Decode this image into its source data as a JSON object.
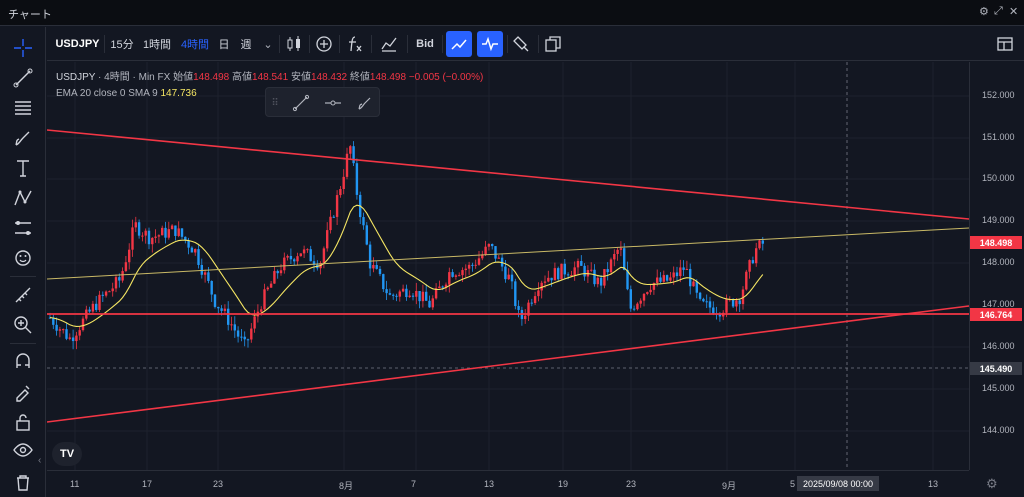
{
  "window": {
    "title": "チャート",
    "controls": [
      "⚙",
      "⤢",
      "⧉",
      "✕"
    ]
  },
  "toolbar": {
    "symbol": "USDJPY",
    "intervals": [
      "15分",
      "1時間",
      "4時間",
      "日",
      "週"
    ],
    "active_interval": "4時間",
    "bid_label": "Bid"
  },
  "legend": {
    "symbol": "USDJPY",
    "interval": "4時間",
    "exchange": "Min FX",
    "open_label": "始値",
    "open": "148.498",
    "high_label": "高値",
    "high": "148.541",
    "low_label": "安値",
    "low": "148.432",
    "close_label": "終値",
    "close": "148.498",
    "change": "−0.005 (−0.00%)",
    "indicator": "EMA 20 close 0 SMA 9",
    "indicator_value": "147.736"
  },
  "price_axis": {
    "ticks": [
      "152.000",
      "151.000",
      "150.000",
      "149.000",
      "148.000",
      "147.000",
      "146.000",
      "145.000",
      "144.000"
    ],
    "badges": [
      {
        "text": "148.498",
        "color": "#f23645"
      },
      {
        "text": "146.764",
        "color": "#f23645"
      },
      {
        "text": "145.490",
        "color": "#363a45"
      }
    ]
  },
  "time_axis": {
    "ticks": [
      "11",
      "17",
      "23",
      "8月",
      "7",
      "13",
      "19",
      "23",
      "9月",
      "5",
      "13"
    ],
    "crosshair_label": "2025/09/08  00:00"
  },
  "logo": "TV",
  "colors": {
    "accent": "#2962ff",
    "bull": "#f23645",
    "bear": "#2196f3",
    "ema": "#f5e663",
    "line": "#f23645"
  }
}
